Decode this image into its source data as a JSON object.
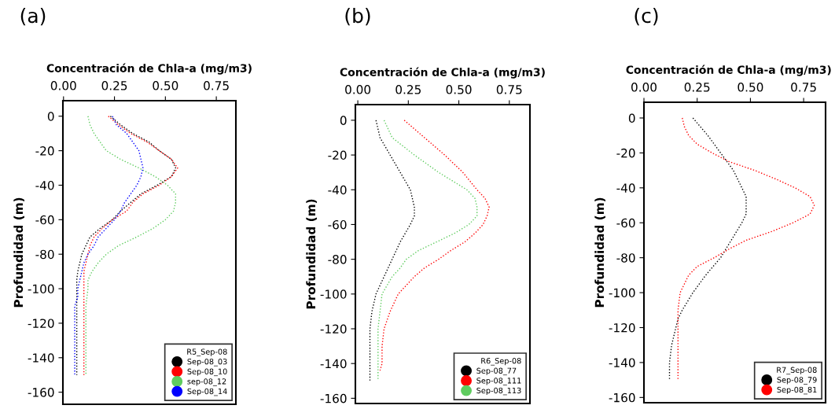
{
  "chart_data": [
    {
      "type": "line",
      "annotations": [
        "(a)"
      ],
      "xlabel": "Concentración de Chla-a (mg/m3)",
      "ylabel": "Profundidad (m)",
      "legend_title": "R5_Sep-08",
      "legend": "bottom right",
      "line_style": "dotted",
      "grid": false,
      "xlim": [
        -0.003,
        0.846
      ],
      "ylim": [
        -167,
        9
      ],
      "xticks": [
        {
          "value": 0,
          "label": "0.00"
        },
        {
          "value": 0.25,
          "label": "0.25"
        },
        {
          "value": 0.5,
          "label": "0.50"
        },
        {
          "value": 0.75,
          "label": "0.75"
        }
      ],
      "yticks": [
        0,
        -20,
        -40,
        -60,
        -80,
        -100,
        -120,
        -140,
        -160
      ],
      "series": [
        {
          "name": "Sep-08_03",
          "color": "#000000",
          "x": [
            0.23,
            0.28,
            0.34,
            0.42,
            0.47,
            0.53,
            0.55,
            0.53,
            0.46,
            0.38,
            0.33,
            0.28,
            0.24,
            0.18,
            0.13,
            0.11,
            0.09,
            0.08,
            0.07,
            0.065,
            0.065,
            0.065,
            0.065,
            0.065,
            0.065,
            0.065
          ],
          "values": [
            0,
            -5,
            -10,
            -15,
            -20,
            -25,
            -30,
            -35,
            -40,
            -45,
            -50,
            -55,
            -60,
            -65,
            -70,
            -75,
            -80,
            -85,
            -90,
            -95,
            -100,
            -110,
            -120,
            -130,
            -140,
            -150
          ]
        },
        {
          "name": "Sep-08_10",
          "color": "#ff0000",
          "x": [
            0.22,
            0.27,
            0.33,
            0.41,
            0.47,
            0.53,
            0.56,
            0.53,
            0.47,
            0.39,
            0.34,
            0.31,
            0.24,
            0.19,
            0.15,
            0.13,
            0.12,
            0.11,
            0.1,
            0.1,
            0.1,
            0.1,
            0.1,
            0.1
          ],
          "values": [
            0,
            -5,
            -10,
            -15,
            -20,
            -25,
            -30,
            -35,
            -40,
            -45,
            -50,
            -55,
            -60,
            -65,
            -70,
            -75,
            -80,
            -85,
            -90,
            -100,
            -110,
            -120,
            -130,
            -150
          ]
        },
        {
          "name": "sep-08_12",
          "color": "#5fcc5f",
          "x": [
            0.12,
            0.13,
            0.15,
            0.18,
            0.21,
            0.28,
            0.37,
            0.45,
            0.51,
            0.55,
            0.55,
            0.54,
            0.5,
            0.44,
            0.36,
            0.27,
            0.21,
            0.17,
            0.14,
            0.12,
            0.12,
            0.11,
            0.11
          ],
          "values": [
            0,
            -5,
            -10,
            -15,
            -20,
            -25,
            -30,
            -35,
            -40,
            -45,
            -50,
            -55,
            -60,
            -65,
            -70,
            -75,
            -80,
            -85,
            -90,
            -95,
            -100,
            -110,
            -150
          ]
        },
        {
          "name": "Sep-08_14",
          "color": "#0000ff",
          "x": [
            0.24,
            0.26,
            0.31,
            0.34,
            0.37,
            0.38,
            0.39,
            0.38,
            0.36,
            0.33,
            0.3,
            0.28,
            0.25,
            0.21,
            0.17,
            0.15,
            0.12,
            0.1,
            0.09,
            0.08,
            0.07,
            0.07,
            0.055,
            0.055
          ],
          "values": [
            0,
            -5,
            -10,
            -15,
            -20,
            -25,
            -30,
            -35,
            -40,
            -45,
            -50,
            -55,
            -60,
            -65,
            -70,
            -75,
            -80,
            -85,
            -90,
            -95,
            -100,
            -105,
            -110,
            -150
          ]
        }
      ]
    },
    {
      "type": "line",
      "annotations": [
        "(b)"
      ],
      "xlabel": "Concentración de Chla-a (mg/m3)",
      "ylabel": "Profundidad (m)",
      "legend_title": "R6_Sep-08",
      "legend": "bottom right",
      "line_style": "dotted",
      "grid": false,
      "xlim": [
        -0.012,
        0.852
      ],
      "ylim": [
        -163,
        9
      ],
      "xticks": [
        {
          "value": 0,
          "label": "0.00"
        },
        {
          "value": 0.25,
          "label": "0.25"
        },
        {
          "value": 0.5,
          "label": "0.50"
        },
        {
          "value": 0.75,
          "label": "0.75"
        }
      ],
      "yticks": [
        0,
        -20,
        -40,
        -60,
        -80,
        -100,
        -120,
        -140,
        -160
      ],
      "series": [
        {
          "name": "Sep-08_77",
          "color": "#000000",
          "x": [
            0.09,
            0.11,
            0.16,
            0.21,
            0.26,
            0.27,
            0.28,
            0.28,
            0.26,
            0.21,
            0.17,
            0.13,
            0.09,
            0.07,
            0.06,
            0.06,
            0.06
          ],
          "values": [
            0,
            -10,
            -20,
            -30,
            -40,
            -45,
            -50,
            -55,
            -60,
            -70,
            -80,
            -90,
            -100,
            -110,
            -120,
            -130,
            -150
          ]
        },
        {
          "name": "Sep-08_111",
          "color": "#ff0000",
          "x": [
            0.23,
            0.28,
            0.33,
            0.43,
            0.52,
            0.59,
            0.63,
            0.65,
            0.64,
            0.62,
            0.58,
            0.53,
            0.46,
            0.4,
            0.33,
            0.28,
            0.24,
            0.2,
            0.16,
            0.13,
            0.12,
            0.12,
            0.11
          ],
          "values": [
            0,
            -5,
            -10,
            -20,
            -30,
            -40,
            -45,
            -50,
            -55,
            -60,
            -65,
            -70,
            -75,
            -80,
            -85,
            -90,
            -95,
            -100,
            -110,
            -120,
            -130,
            -140,
            -144
          ]
        },
        {
          "name": "Sep-08_113",
          "color": "#5fcc5f",
          "x": [
            0.13,
            0.17,
            0.28,
            0.4,
            0.54,
            0.58,
            0.59,
            0.59,
            0.55,
            0.48,
            0.39,
            0.3,
            0.24,
            0.21,
            0.17,
            0.12,
            0.11,
            0.1,
            0.1
          ],
          "values": [
            0,
            -10,
            -20,
            -30,
            -40,
            -45,
            -50,
            -55,
            -60,
            -65,
            -70,
            -75,
            -80,
            -85,
            -90,
            -100,
            -110,
            -120,
            -150
          ]
        }
      ]
    },
    {
      "type": "line",
      "annotations": [
        "(c)"
      ],
      "xlabel": "Concentración de Chla-a (mg/m3)",
      "ylabel": "Profundidad (m)",
      "legend_title": "R7_Sep-08",
      "legend": "bottom right",
      "line_style": "dotted",
      "grid": false,
      "xlim": [
        0,
        0.853
      ],
      "ylim": [
        -163,
        9
      ],
      "xticks": [
        {
          "value": 0,
          "label": "0.00"
        },
        {
          "value": 0.25,
          "label": "0.25"
        },
        {
          "value": 0.5,
          "label": "0.50"
        },
        {
          "value": 0.75,
          "label": "0.75"
        }
      ],
      "yticks": [
        0,
        -20,
        -40,
        -60,
        -80,
        -100,
        -120,
        -140,
        -160
      ],
      "series": [
        {
          "name": "Sep-08_79",
          "color": "#000000",
          "x": [
            0.23,
            0.3,
            0.36,
            0.42,
            0.46,
            0.48,
            0.48,
            0.48,
            0.46,
            0.41,
            0.36,
            0.29,
            0.23,
            0.18,
            0.16,
            0.15,
            0.13,
            0.12,
            0.12
          ],
          "values": [
            0,
            -10,
            -20,
            -30,
            -40,
            -45,
            -50,
            -55,
            -60,
            -70,
            -80,
            -90,
            -100,
            -110,
            -115,
            -120,
            -130,
            -140,
            -150
          ]
        },
        {
          "name": "Sep-08_81",
          "color": "#ff0000",
          "x": [
            0.18,
            0.19,
            0.21,
            0.25,
            0.32,
            0.4,
            0.52,
            0.62,
            0.71,
            0.78,
            0.8,
            0.78,
            0.7,
            0.6,
            0.48,
            0.4,
            0.33,
            0.25,
            0.21,
            0.19,
            0.17,
            0.16,
            0.16
          ],
          "values": [
            0,
            -5,
            -10,
            -15,
            -20,
            -25,
            -30,
            -35,
            -40,
            -45,
            -50,
            -55,
            -60,
            -65,
            -70,
            -75,
            -80,
            -85,
            -90,
            -95,
            -100,
            -110,
            -150
          ]
        }
      ]
    }
  ]
}
